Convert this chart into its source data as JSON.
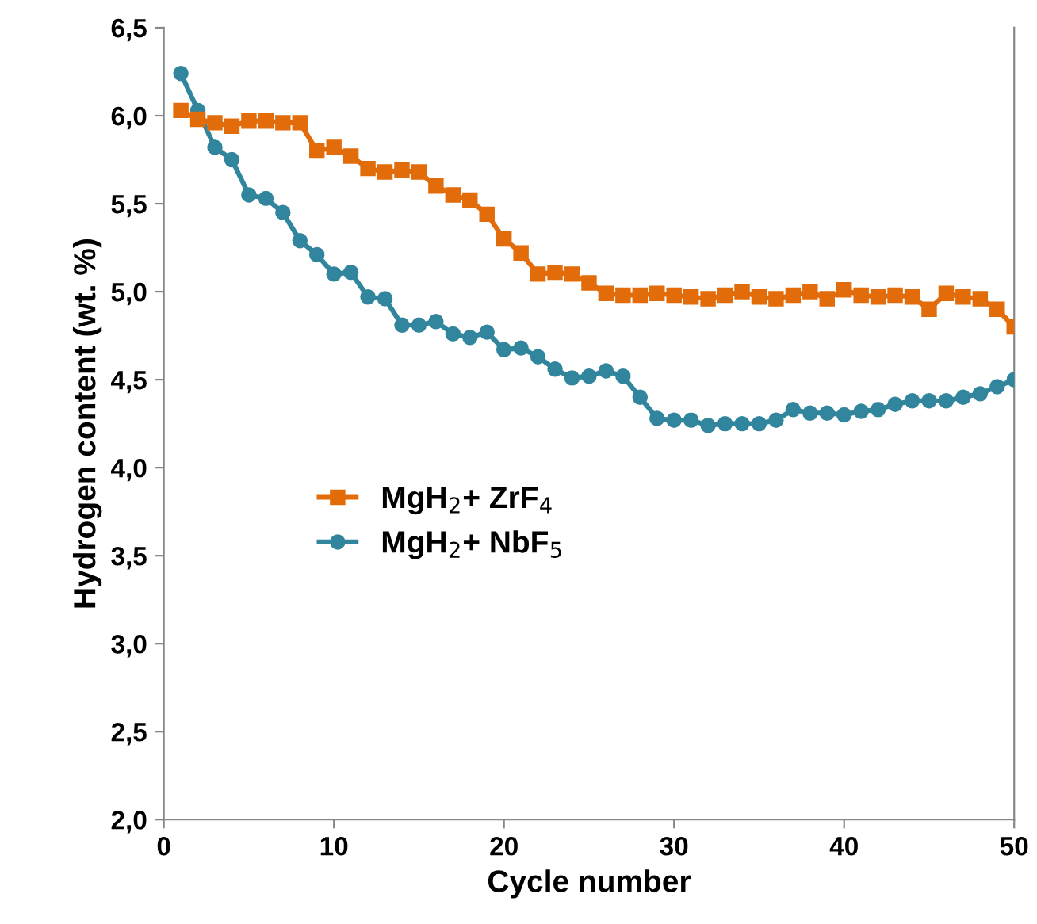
{
  "chart_data": {
    "type": "line",
    "xlabel": "Cycle number",
    "ylabel": "Hydrogen content (wt. %)",
    "x": [
      1,
      2,
      3,
      4,
      5,
      6,
      7,
      8,
      9,
      10,
      11,
      12,
      13,
      14,
      15,
      16,
      17,
      18,
      19,
      20,
      21,
      22,
      23,
      24,
      25,
      26,
      27,
      28,
      29,
      30,
      31,
      32,
      33,
      34,
      35,
      36,
      37,
      38,
      39,
      40,
      41,
      42,
      43,
      44,
      45,
      46,
      47,
      48,
      49,
      50
    ],
    "series": [
      {
        "name": "MgH$_{2}$+ ZrF$_{4}$",
        "color": "#e36c0a",
        "marker": "square",
        "values": [
          6.03,
          5.98,
          5.96,
          5.94,
          5.97,
          5.97,
          5.96,
          5.96,
          5.8,
          5.82,
          5.77,
          5.7,
          5.68,
          5.69,
          5.68,
          5.6,
          5.55,
          5.52,
          5.44,
          5.3,
          5.22,
          5.1,
          5.11,
          5.1,
          5.05,
          4.99,
          4.98,
          4.98,
          4.99,
          4.98,
          4.97,
          4.96,
          4.98,
          5.0,
          4.97,
          4.96,
          4.98,
          5.0,
          4.96,
          5.01,
          4.98,
          4.97,
          4.98,
          4.97,
          4.9,
          4.99,
          4.97,
          4.96,
          4.9,
          4.8
        ]
      },
      {
        "name": "MgH$_{2}$+ NbF$_{5}$",
        "color": "#31859c",
        "marker": "circle",
        "values": [
          6.24,
          6.03,
          5.82,
          5.75,
          5.55,
          5.53,
          5.45,
          5.29,
          5.21,
          5.1,
          5.11,
          4.97,
          4.96,
          4.81,
          4.81,
          4.83,
          4.76,
          4.74,
          4.77,
          4.67,
          4.68,
          4.63,
          4.56,
          4.51,
          4.52,
          4.55,
          4.52,
          4.4,
          4.28,
          4.27,
          4.27,
          4.24,
          4.25,
          4.25,
          4.25,
          4.27,
          4.33,
          4.31,
          4.31,
          4.3,
          4.32,
          4.33,
          4.36,
          4.38,
          4.38,
          4.38,
          4.4,
          4.42,
          4.46,
          4.5
        ]
      }
    ],
    "xlim": [
      0,
      50
    ],
    "xticks": [
      0,
      10,
      20,
      30,
      40,
      50
    ],
    "ylim": [
      2.0,
      6.5
    ],
    "yticks": [
      {
        "value": 2.0,
        "label": "2,0"
      },
      {
        "value": 2.5,
        "label": "2,5"
      },
      {
        "value": 3.0,
        "label": "3,0"
      },
      {
        "value": 3.5,
        "label": "3,5"
      },
      {
        "value": 4.0,
        "label": "4,0"
      },
      {
        "value": 4.5,
        "label": "4,5"
      },
      {
        "value": 5.0,
        "label": "5,0"
      },
      {
        "value": 5.5,
        "label": "5,5"
      },
      {
        "value": 6.0,
        "label": "6,0"
      },
      {
        "value": 6.5,
        "label": "6,5"
      }
    ],
    "grid": false,
    "legend": "center left",
    "line_style": "solid"
  }
}
